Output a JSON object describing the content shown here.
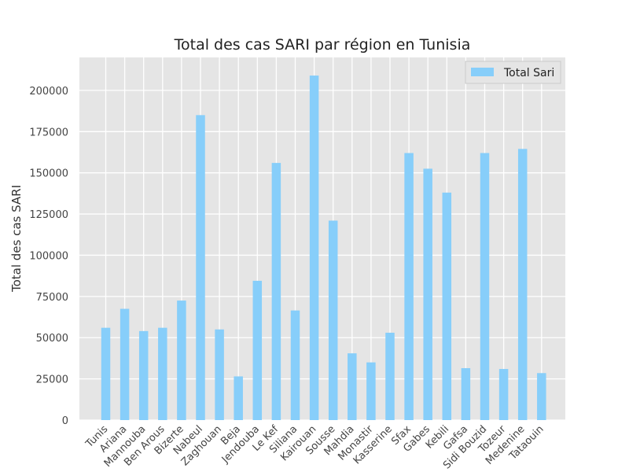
{
  "chart_data": {
    "type": "bar",
    "title": "Total des cas SARI par région en Tunisia",
    "xlabel": "",
    "ylabel": "Total des cas SARI",
    "ylim": [
      0,
      220000
    ],
    "yticks": [
      0,
      25000,
      50000,
      75000,
      100000,
      125000,
      150000,
      175000,
      200000
    ],
    "grid": true,
    "legend_position": "top-right",
    "categories": [
      "Tunis",
      "Ariana",
      "Mannouba",
      "Ben Arous",
      "Bizerte",
      "Nabeul",
      "Zaghouan",
      "Beja",
      "Jendouba",
      "Le Kef",
      "Siliana",
      "Kairouan",
      "Sousse",
      "Mahdia",
      "Monastir",
      "Kasserine",
      "Sfax",
      "Gabes",
      "Kebili",
      "Gafsa",
      "Sidi Bouzid",
      "Tozeur",
      "Medenine",
      "Tataouin"
    ],
    "series": [
      {
        "name": "Total Sari",
        "color": "#87cefa",
        "values": [
          56000,
          67500,
          54000,
          56000,
          72500,
          185000,
          55000,
          26500,
          84500,
          156000,
          66500,
          209000,
          121000,
          40500,
          35000,
          53000,
          162000,
          152500,
          138000,
          31500,
          162000,
          31000,
          164500,
          28500
        ]
      }
    ]
  },
  "colors": {
    "plot_background": "#e5e5e5",
    "grid": "#ffffff",
    "bar": "#87cefa"
  }
}
